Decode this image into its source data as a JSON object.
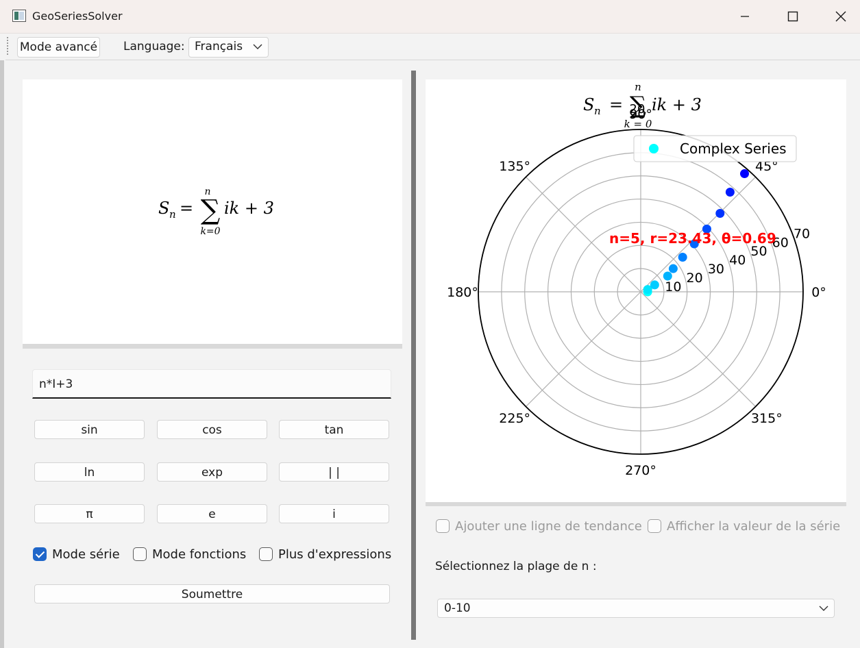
{
  "window": {
    "title": "GeoSeriesSolver"
  },
  "toolbar": {
    "mode_button": "Mode avancé",
    "language_label": "Language:",
    "language_value": "Français"
  },
  "formula": {
    "lhs": "S",
    "lhs_sub": "n",
    "equals": "=",
    "sum_upper": "n",
    "sum_lower": "k=0",
    "body": "ik + 3"
  },
  "input": {
    "value": "n*I+3"
  },
  "buttons": {
    "row1": [
      "sin",
      "cos",
      "tan"
    ],
    "row2": [
      "ln",
      "exp",
      "| |"
    ],
    "row3": [
      "π",
      "e",
      "i"
    ],
    "submit": "Soumettre"
  },
  "modes": {
    "series": {
      "label": "Mode série",
      "checked": true
    },
    "functions": {
      "label": "Mode fonctions",
      "checked": false
    },
    "more": {
      "label": "Plus d'expressions",
      "checked": false
    }
  },
  "options": {
    "trendline": {
      "label": "Ajouter une ligne de tendance",
      "checked": false
    },
    "show_value": {
      "label": "Afficher la valeur de la série",
      "checked": false
    }
  },
  "range": {
    "label": "Sélectionnez la plage de n :",
    "value": "0-10"
  },
  "chart_data": {
    "type": "polar-scatter",
    "title": "S_n = Σ_{k=0}^{n} ik + 3",
    "title_parts": {
      "lhs": "S",
      "lhs_sub": "n",
      "equals": "=",
      "sum_upper": "n",
      "sum_lower": "k = 0",
      "body": "ik + 3",
      "overlap_tick": "20"
    },
    "legend": {
      "label": "Complex Series",
      "placement": "upper-right"
    },
    "angle_ticks": [
      "0°",
      "45°",
      "90°",
      "135°",
      "180°",
      "225°",
      "270°",
      "315°"
    ],
    "radial_ticks": [
      10,
      20,
      30,
      40,
      50,
      60,
      70
    ],
    "rlim": [
      0,
      70
    ],
    "grid": true,
    "series": [
      {
        "name": "Complex Series",
        "points": [
          {
            "n": 0,
            "r": 3.0,
            "theta": 0.0
          },
          {
            "n": 1,
            "r": 3.16,
            "theta": 0.32
          },
          {
            "n": 2,
            "r": 6.71,
            "theta": 0.46
          },
          {
            "n": 3,
            "r": 13.45,
            "theta": 0.53
          },
          {
            "n": 4,
            "r": 17.2,
            "theta": 0.62
          },
          {
            "n": 5,
            "r": 23.43,
            "theta": 0.69
          },
          {
            "n": 6,
            "r": 31.0,
            "theta": 0.73
          },
          {
            "n": 7,
            "r": 39.3,
            "theta": 0.76
          },
          {
            "n": 8,
            "r": 48.1,
            "theta": 0.78
          },
          {
            "n": 9,
            "r": 57.7,
            "theta": 0.84
          },
          {
            "n": 10,
            "r": 67.8,
            "theta": 0.85
          }
        ]
      }
    ],
    "annotation": "n=5, r=23.43, θ=0.69",
    "colors": {
      "start": "#00ffff",
      "end": "#0000ff",
      "annotation": "#ff0000"
    }
  }
}
